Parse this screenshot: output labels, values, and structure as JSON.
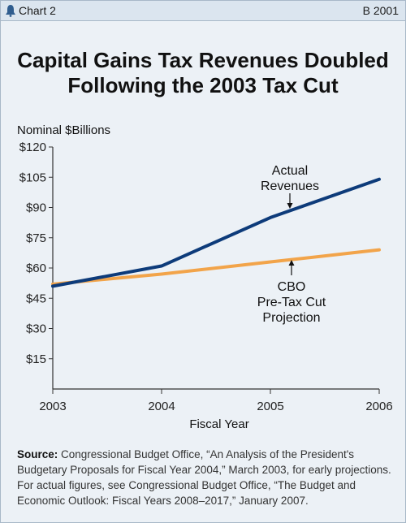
{
  "header": {
    "chart_label": "Chart 2",
    "chart_id": "B 2001"
  },
  "chart_data": {
    "type": "line",
    "title_lines": [
      "Capital Gains Tax Revenues Doubled",
      "Following the 2003 Tax Cut"
    ],
    "ylabel": "Nominal $Billions",
    "xlabel": "Fiscal Year",
    "x": [
      2003,
      2004,
      2005,
      2006
    ],
    "x_tick_labels": [
      "2003",
      "2004",
      "2005",
      "2006"
    ],
    "ylim": [
      0,
      120
    ],
    "y_ticks": [
      15,
      30,
      45,
      60,
      75,
      90,
      105,
      120
    ],
    "y_tick_labels": [
      "$15",
      "$30",
      "$45",
      "$60",
      "$75",
      "$90",
      "$105",
      "$120"
    ],
    "series": [
      {
        "name": "Actual Revenues",
        "label_lines": [
          "Actual",
          "Revenues"
        ],
        "color": "#0d3b7a",
        "values": [
          51,
          61,
          85,
          104
        ]
      },
      {
        "name": "CBO Pre-Tax Cut Projection",
        "label_lines": [
          "CBO",
          "Pre-Tax Cut",
          "Projection"
        ],
        "color": "#f2a44a",
        "values": [
          52,
          57,
          63,
          69
        ]
      }
    ],
    "grid": false
  },
  "source": {
    "label": "Source:",
    "text": "Congressional Budget Office, “An Analysis of the President's Budgetary Proposals for Fiscal Year 2004,” March 2003, for early projections. For actual figures, see Congressional Budget Office, “The Budget and Economic Outlook: Fiscal Years 2008–2017,” January 2007."
  },
  "colors": {
    "background": "#ecf1f6",
    "header_bar": "#dbe5ef",
    "actual_line": "#0d3b7a",
    "projection_line": "#f2a44a"
  }
}
